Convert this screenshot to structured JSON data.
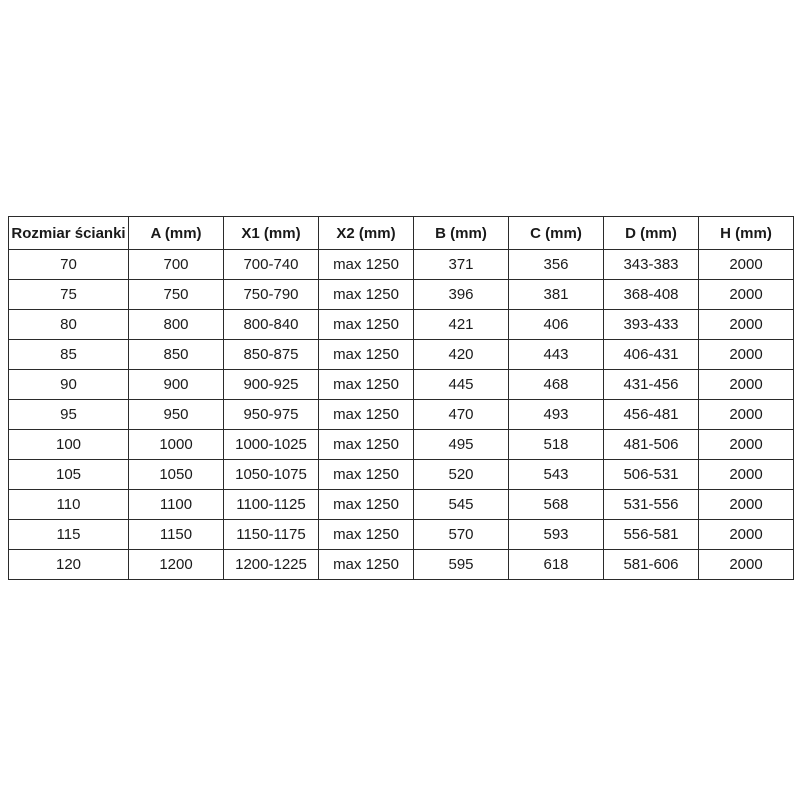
{
  "page": {
    "background_color": "#ffffff"
  },
  "table": {
    "name": "size-specification-table",
    "border_color": "#2b2b2b",
    "text_color": "#1a1a1a",
    "header_background": "#ffffff",
    "headers": [
      "Rozmiar ścianki",
      "A (mm)",
      "X1 (mm)",
      "X2 (mm)",
      "B (mm)",
      "C (mm)",
      "D (mm)",
      "H (mm)"
    ],
    "rows": [
      [
        "70",
        "700",
        "700-740",
        "max 1250",
        "371",
        "356",
        "343-383",
        "2000"
      ],
      [
        "75",
        "750",
        "750-790",
        "max 1250",
        "396",
        "381",
        "368-408",
        "2000"
      ],
      [
        "80",
        "800",
        "800-840",
        "max 1250",
        "421",
        "406",
        "393-433",
        "2000"
      ],
      [
        "85",
        "850",
        "850-875",
        "max 1250",
        "420",
        "443",
        "406-431",
        "2000"
      ],
      [
        "90",
        "900",
        "900-925",
        "max 1250",
        "445",
        "468",
        "431-456",
        "2000"
      ],
      [
        "95",
        "950",
        "950-975",
        "max 1250",
        "470",
        "493",
        "456-481",
        "2000"
      ],
      [
        "100",
        "1000",
        "1000-1025",
        "max 1250",
        "495",
        "518",
        "481-506",
        "2000"
      ],
      [
        "105",
        "1050",
        "1050-1075",
        "max 1250",
        "520",
        "543",
        "506-531",
        "2000"
      ],
      [
        "110",
        "1100",
        "1100-1125",
        "max 1250",
        "545",
        "568",
        "531-556",
        "2000"
      ],
      [
        "115",
        "1150",
        "1150-1175",
        "max 1250",
        "570",
        "593",
        "556-581",
        "2000"
      ],
      [
        "120",
        "1200",
        "1200-1225",
        "max 1250",
        "595",
        "618",
        "581-606",
        "2000"
      ]
    ]
  }
}
